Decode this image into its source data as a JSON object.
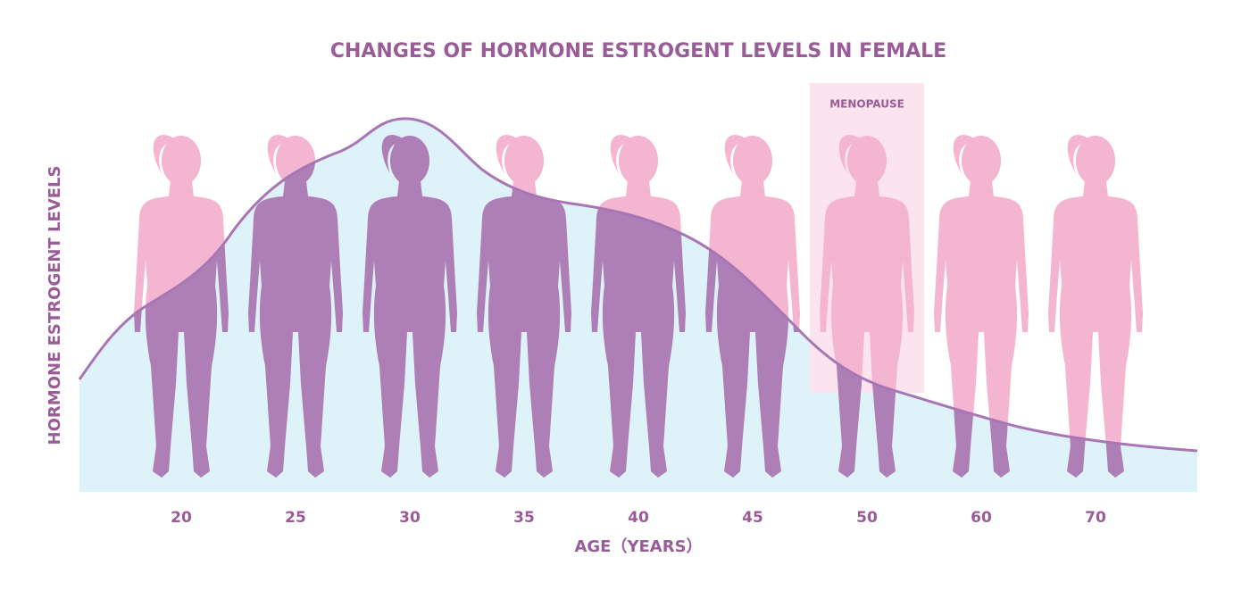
{
  "title": "CHANGES OF HORMONE ESTROGENT LEVELS IN FEMALE",
  "y_axis_label": "HORMONE ESTROGENT LEVELS",
  "x_axis_label": "AGE（YEARS）",
  "menopause_label": "MENOPAUSE",
  "ages": [
    20,
    25,
    30,
    35,
    40,
    45,
    50,
    60,
    70
  ]
}
